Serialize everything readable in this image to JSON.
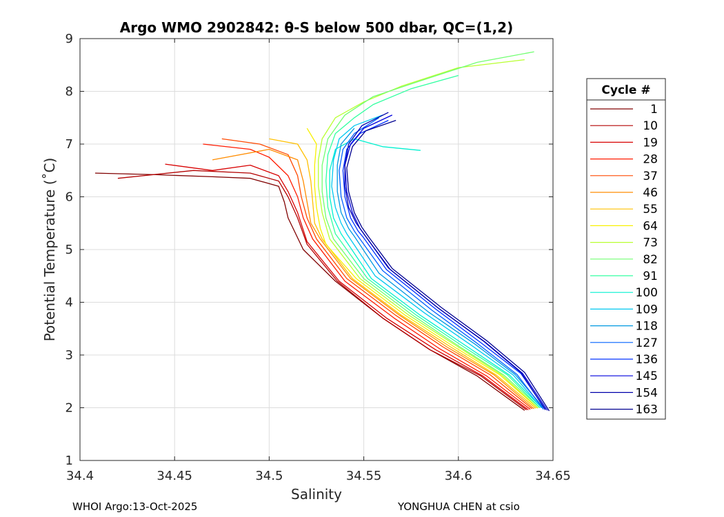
{
  "chart_data": {
    "type": "line",
    "title": "Argo WMO 2902842: θ-S below 500 dbar,  QC=(1,2)",
    "xlabel": "Salinity",
    "ylabel": "Potential Temperature (˚C)",
    "xlim": [
      34.4,
      34.65
    ],
    "ylim": [
      1,
      9
    ],
    "xticks": [
      34.4,
      34.45,
      34.5,
      34.55,
      34.6,
      34.65
    ],
    "xtick_labels": [
      "34.4",
      "34.45",
      "34.5",
      "34.55",
      "34.6",
      "34.65"
    ],
    "yticks": [
      1,
      2,
      3,
      4,
      5,
      6,
      7,
      8,
      9
    ],
    "ytick_labels": [
      "1",
      "2",
      "3",
      "4",
      "5",
      "6",
      "7",
      "8",
      "9"
    ],
    "grid": true,
    "legend": {
      "title": "Cycle #",
      "placement": "right",
      "entries": [
        {
          "label": "1",
          "color": "#800000"
        },
        {
          "label": "10",
          "color": "#b30000"
        },
        {
          "label": "19",
          "color": "#d80000"
        },
        {
          "label": "28",
          "color": "#ff1a00"
        },
        {
          "label": "37",
          "color": "#ff4800"
        },
        {
          "label": "46",
          "color": "#ff8c00"
        },
        {
          "label": "55",
          "color": "#ffc000"
        },
        {
          "label": "64",
          "color": "#f8f000"
        },
        {
          "label": "73",
          "color": "#b8ff30"
        },
        {
          "label": "82",
          "color": "#70ff70"
        },
        {
          "label": "91",
          "color": "#30ffa0"
        },
        {
          "label": "100",
          "color": "#00f0d0"
        },
        {
          "label": "109",
          "color": "#00c8f0"
        },
        {
          "label": "118",
          "color": "#0098e0"
        },
        {
          "label": "127",
          "color": "#0060ff"
        },
        {
          "label": "136",
          "color": "#0030ff"
        },
        {
          "label": "145",
          "color": "#0000dd"
        },
        {
          "label": "154",
          "color": "#0000aa"
        },
        {
          "label": "163",
          "color": "#000090"
        }
      ]
    },
    "series": [
      {
        "name": "1",
        "color": "#800000",
        "points": [
          [
            34.408,
            6.45
          ],
          [
            34.44,
            6.42
          ],
          [
            34.47,
            6.38
          ],
          [
            34.49,
            6.35
          ],
          [
            34.505,
            6.2
          ],
          [
            34.508,
            5.9
          ],
          [
            34.51,
            5.6
          ],
          [
            34.518,
            5.0
          ],
          [
            34.535,
            4.4
          ],
          [
            34.56,
            3.7
          ],
          [
            34.585,
            3.1
          ],
          [
            34.61,
            2.6
          ],
          [
            34.635,
            1.95
          ]
        ]
      },
      {
        "name": "10",
        "color": "#b30000",
        "points": [
          [
            34.42,
            6.35
          ],
          [
            34.46,
            6.5
          ],
          [
            34.49,
            6.45
          ],
          [
            34.505,
            6.3
          ],
          [
            34.51,
            6.0
          ],
          [
            34.515,
            5.6
          ],
          [
            34.52,
            5.1
          ],
          [
            34.536,
            4.4
          ],
          [
            34.56,
            3.7
          ],
          [
            34.585,
            3.1
          ],
          [
            34.612,
            2.6
          ],
          [
            34.636,
            1.96
          ]
        ]
      },
      {
        "name": "19",
        "color": "#d80000",
        "points": [
          [
            34.445,
            6.62
          ],
          [
            34.47,
            6.5
          ],
          [
            34.49,
            6.6
          ],
          [
            34.505,
            6.4
          ],
          [
            34.51,
            6.1
          ],
          [
            34.515,
            5.7
          ],
          [
            34.52,
            5.15
          ],
          [
            34.537,
            4.4
          ],
          [
            34.562,
            3.7
          ],
          [
            34.588,
            3.1
          ],
          [
            34.613,
            2.6
          ],
          [
            34.637,
            1.96
          ]
        ]
      },
      {
        "name": "28",
        "color": "#ff1a00",
        "points": [
          [
            34.465,
            7.0
          ],
          [
            34.49,
            6.9
          ],
          [
            34.5,
            6.75
          ],
          [
            34.51,
            6.4
          ],
          [
            34.515,
            6.0
          ],
          [
            34.518,
            5.6
          ],
          [
            34.523,
            5.2
          ],
          [
            34.54,
            4.4
          ],
          [
            34.566,
            3.7
          ],
          [
            34.59,
            3.12
          ],
          [
            34.615,
            2.6
          ],
          [
            34.638,
            1.97
          ]
        ]
      },
      {
        "name": "37",
        "color": "#ff4800",
        "points": [
          [
            34.475,
            7.1
          ],
          [
            34.495,
            7.0
          ],
          [
            34.51,
            6.8
          ],
          [
            34.515,
            6.4
          ],
          [
            34.517,
            6.0
          ],
          [
            34.52,
            5.6
          ],
          [
            34.525,
            5.2
          ],
          [
            34.541,
            4.45
          ],
          [
            34.567,
            3.75
          ],
          [
            34.592,
            3.15
          ],
          [
            34.617,
            2.62
          ],
          [
            34.639,
            1.98
          ]
        ]
      },
      {
        "name": "46",
        "color": "#ff8c00",
        "points": [
          [
            34.47,
            6.7
          ],
          [
            34.5,
            6.9
          ],
          [
            34.515,
            6.7
          ],
          [
            34.518,
            6.3
          ],
          [
            34.52,
            5.9
          ],
          [
            34.522,
            5.5
          ],
          [
            34.527,
            5.2
          ],
          [
            34.543,
            4.45
          ],
          [
            34.569,
            3.75
          ],
          [
            34.594,
            3.15
          ],
          [
            34.619,
            2.62
          ],
          [
            34.64,
            1.98
          ]
        ]
      },
      {
        "name": "55",
        "color": "#ffc000",
        "points": [
          [
            34.5,
            7.1
          ],
          [
            34.515,
            7.0
          ],
          [
            34.52,
            6.7
          ],
          [
            34.522,
            6.3
          ],
          [
            34.523,
            5.9
          ],
          [
            34.524,
            5.5
          ],
          [
            34.528,
            5.2
          ],
          [
            34.544,
            4.45
          ],
          [
            34.57,
            3.75
          ],
          [
            34.596,
            3.15
          ],
          [
            34.62,
            2.62
          ],
          [
            34.641,
            1.99
          ]
        ]
      },
      {
        "name": "64",
        "color": "#f8f000",
        "points": [
          [
            34.52,
            7.3
          ],
          [
            34.525,
            7.0
          ],
          [
            34.524,
            6.6
          ],
          [
            34.524,
            6.2
          ],
          [
            34.525,
            5.8
          ],
          [
            34.527,
            5.4
          ],
          [
            34.53,
            5.1
          ],
          [
            34.546,
            4.45
          ],
          [
            34.572,
            3.75
          ],
          [
            34.598,
            3.15
          ],
          [
            34.622,
            2.62
          ],
          [
            34.642,
            1.99
          ]
        ]
      },
      {
        "name": "73",
        "color": "#b8ff30",
        "points": [
          [
            34.635,
            8.6
          ],
          [
            34.6,
            8.45
          ],
          [
            34.57,
            8.1
          ],
          [
            34.55,
            7.8
          ],
          [
            34.535,
            7.5
          ],
          [
            34.528,
            7.1
          ],
          [
            34.526,
            6.7
          ],
          [
            34.526,
            6.2
          ],
          [
            34.528,
            5.7
          ],
          [
            34.532,
            5.2
          ],
          [
            34.548,
            4.45
          ],
          [
            34.574,
            3.75
          ],
          [
            34.6,
            3.15
          ],
          [
            34.623,
            2.62
          ],
          [
            34.642,
            2.0
          ]
        ]
      },
      {
        "name": "82",
        "color": "#70ff70",
        "points": [
          [
            34.64,
            8.75
          ],
          [
            34.61,
            8.55
          ],
          [
            34.58,
            8.2
          ],
          [
            34.555,
            7.9
          ],
          [
            34.54,
            7.55
          ],
          [
            34.531,
            7.1
          ],
          [
            34.528,
            6.6
          ],
          [
            34.528,
            6.1
          ],
          [
            34.53,
            5.6
          ],
          [
            34.534,
            5.2
          ],
          [
            34.55,
            4.45
          ],
          [
            34.576,
            3.75
          ],
          [
            34.601,
            3.15
          ],
          [
            34.624,
            2.62
          ],
          [
            34.643,
            2.0
          ]
        ]
      },
      {
        "name": "91",
        "color": "#30ffa0",
        "points": [
          [
            34.6,
            8.3
          ],
          [
            34.575,
            8.05
          ],
          [
            34.555,
            7.75
          ],
          [
            34.545,
            7.5
          ],
          [
            34.535,
            7.2
          ],
          [
            34.531,
            6.8
          ],
          [
            34.53,
            6.3
          ],
          [
            34.531,
            5.8
          ],
          [
            34.535,
            5.3
          ],
          [
            34.552,
            4.45
          ],
          [
            34.578,
            3.75
          ],
          [
            34.603,
            3.15
          ],
          [
            34.626,
            2.62
          ],
          [
            34.643,
            2.0
          ]
        ]
      },
      {
        "name": "100",
        "color": "#00f0d0",
        "points": [
          [
            34.58,
            6.88
          ],
          [
            34.56,
            6.95
          ],
          [
            34.545,
            7.1
          ],
          [
            34.535,
            6.9
          ],
          [
            34.532,
            6.5
          ],
          [
            34.532,
            6.0
          ],
          [
            34.534,
            5.6
          ],
          [
            34.538,
            5.3
          ],
          [
            34.554,
            4.45
          ],
          [
            34.58,
            3.75
          ],
          [
            34.605,
            3.15
          ],
          [
            34.627,
            2.62
          ],
          [
            34.644,
            2.0
          ]
        ]
      },
      {
        "name": "109",
        "color": "#00c8f0",
        "points": [
          [
            34.56,
            7.55
          ],
          [
            34.545,
            7.35
          ],
          [
            34.537,
            7.1
          ],
          [
            34.534,
            6.7
          ],
          [
            34.533,
            6.2
          ],
          [
            34.535,
            5.8
          ],
          [
            34.538,
            5.5
          ],
          [
            34.541,
            5.3
          ],
          [
            34.556,
            4.5
          ],
          [
            34.582,
            3.8
          ],
          [
            34.607,
            3.18
          ],
          [
            34.629,
            2.62
          ],
          [
            34.644,
            2.0
          ]
        ]
      },
      {
        "name": "118",
        "color": "#0098e0",
        "points": [
          [
            34.545,
            7.3
          ],
          [
            34.538,
            7.0
          ],
          [
            34.536,
            6.6
          ],
          [
            34.536,
            6.1
          ],
          [
            34.538,
            5.7
          ],
          [
            34.542,
            5.4
          ],
          [
            34.545,
            5.25
          ],
          [
            34.558,
            4.55
          ],
          [
            34.584,
            3.82
          ],
          [
            34.609,
            3.2
          ],
          [
            34.63,
            2.63
          ],
          [
            34.645,
            2.0
          ]
        ]
      },
      {
        "name": "127",
        "color": "#0060ff",
        "points": [
          [
            34.558,
            7.5
          ],
          [
            34.545,
            7.2
          ],
          [
            34.539,
            6.9
          ],
          [
            34.537,
            6.5
          ],
          [
            34.538,
            6.0
          ],
          [
            34.541,
            5.6
          ],
          [
            34.545,
            5.35
          ],
          [
            34.548,
            5.2
          ],
          [
            34.56,
            4.6
          ],
          [
            34.586,
            3.85
          ],
          [
            34.61,
            3.22
          ],
          [
            34.631,
            2.63
          ],
          [
            34.645,
            1.97
          ]
        ]
      },
      {
        "name": "136",
        "color": "#0030ff",
        "points": [
          [
            34.563,
            7.45
          ],
          [
            34.548,
            7.2
          ],
          [
            34.541,
            6.9
          ],
          [
            34.539,
            6.5
          ],
          [
            34.54,
            6.0
          ],
          [
            34.543,
            5.6
          ],
          [
            34.547,
            5.35
          ],
          [
            34.55,
            5.22
          ],
          [
            34.562,
            4.62
          ],
          [
            34.588,
            3.87
          ],
          [
            34.612,
            3.23
          ],
          [
            34.633,
            2.65
          ],
          [
            34.646,
            1.97
          ]
        ]
      },
      {
        "name": "145",
        "color": "#0000dd",
        "points": [
          [
            34.565,
            7.55
          ],
          [
            34.55,
            7.3
          ],
          [
            34.543,
            7.0
          ],
          [
            34.54,
            6.6
          ],
          [
            34.541,
            6.1
          ],
          [
            34.544,
            5.7
          ],
          [
            34.548,
            5.4
          ],
          [
            34.552,
            5.2
          ],
          [
            34.564,
            4.62
          ],
          [
            34.59,
            3.87
          ],
          [
            34.614,
            3.25
          ],
          [
            34.634,
            2.65
          ],
          [
            34.647,
            1.95
          ]
        ]
      },
      {
        "name": "154",
        "color": "#0000aa",
        "points": [
          [
            34.563,
            7.6
          ],
          [
            34.549,
            7.35
          ],
          [
            34.542,
            7.0
          ],
          [
            34.54,
            6.6
          ],
          [
            34.54,
            6.2
          ],
          [
            34.542,
            5.8
          ],
          [
            34.546,
            5.5
          ],
          [
            34.55,
            5.3
          ],
          [
            34.552,
            5.2
          ],
          [
            34.563,
            4.65
          ],
          [
            34.589,
            3.9
          ],
          [
            34.613,
            3.27
          ],
          [
            34.633,
            2.67
          ],
          [
            34.646,
            1.96
          ]
        ]
      },
      {
        "name": "163",
        "color": "#000090",
        "points": [
          [
            34.567,
            7.45
          ],
          [
            34.551,
            7.25
          ],
          [
            34.544,
            6.95
          ],
          [
            34.541,
            6.55
          ],
          [
            34.542,
            6.1
          ],
          [
            34.545,
            5.7
          ],
          [
            34.549,
            5.42
          ],
          [
            34.553,
            5.22
          ],
          [
            34.565,
            4.64
          ],
          [
            34.591,
            3.9
          ],
          [
            34.615,
            3.27
          ],
          [
            34.635,
            2.67
          ],
          [
            34.648,
            1.94
          ]
        ]
      }
    ]
  },
  "footer": {
    "left": "WHOI Argo:13-Oct-2025",
    "right": "YONGHUA CHEN at csio"
  }
}
